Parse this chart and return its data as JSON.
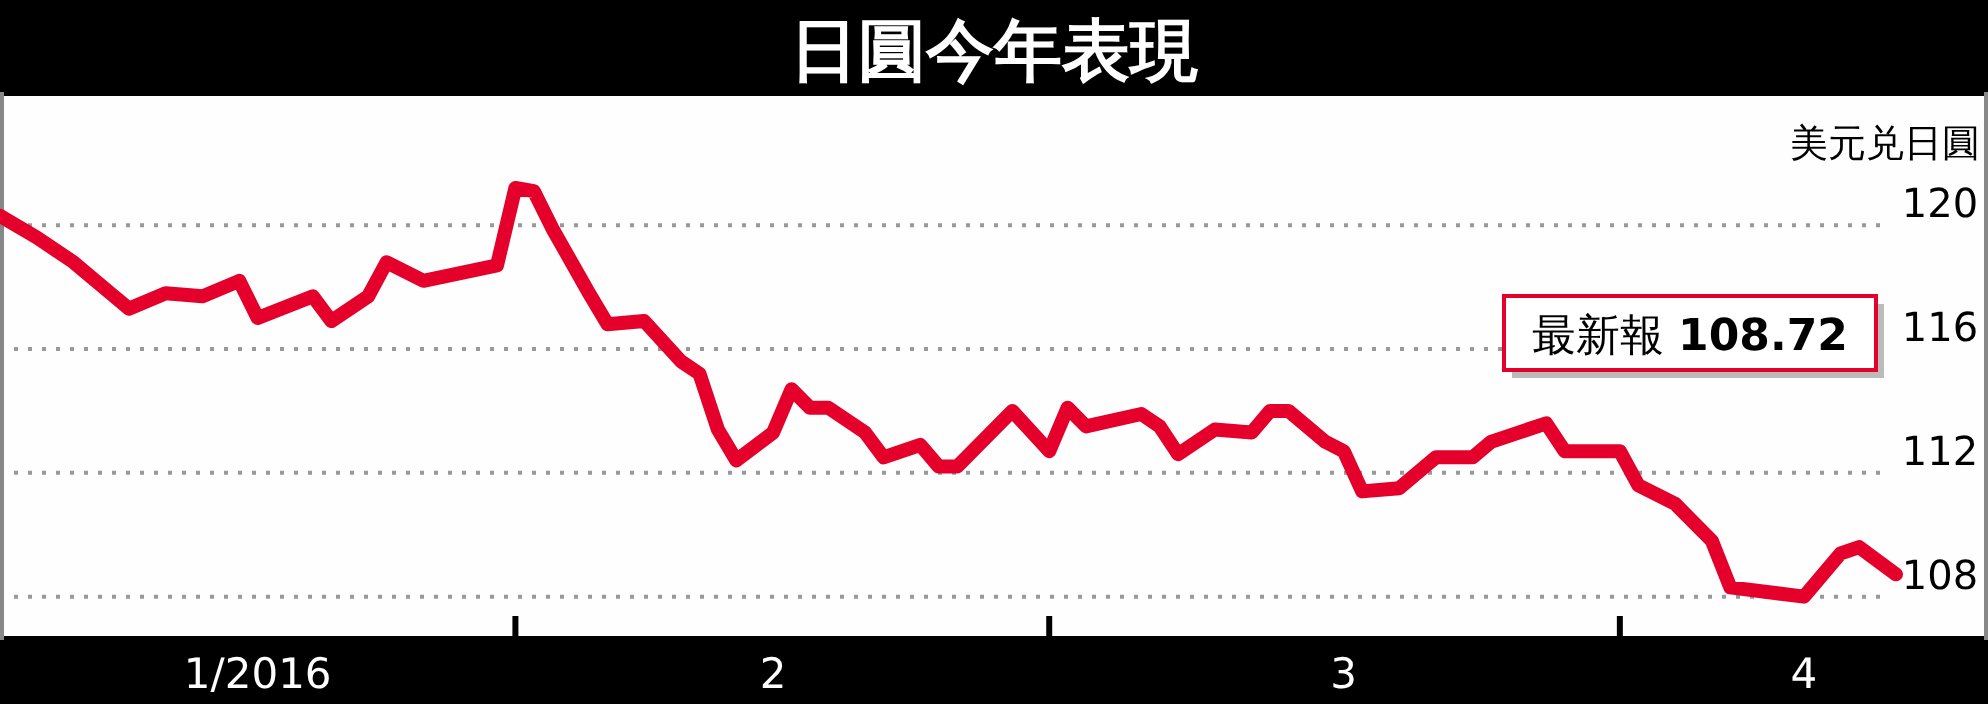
{
  "chart_data": {
    "type": "line",
    "title": "日圓今年表現",
    "ylabel": "美元兑日圓",
    "annotations": [
      "最新報 **108.72**"
    ],
    "x": [
      "2016-01-04",
      "2016-01-06",
      "2016-01-08",
      "2016-01-10",
      "2016-01-11",
      "2016-01-13",
      "2016-01-15",
      "2016-01-17",
      "2016-01-18",
      "2016-01-21",
      "2016-01-22",
      "2016-01-24",
      "2016-01-25",
      "2016-01-27",
      "2016-01-31",
      "2016-02-01",
      "2016-02-02",
      "2016-02-03",
      "2016-02-05",
      "2016-02-06",
      "2016-02-08",
      "2016-02-10",
      "2016-02-11",
      "2016-02-12",
      "2016-02-13",
      "2016-02-15",
      "2016-02-16",
      "2016-02-17",
      "2016-02-18",
      "2016-02-20",
      "2016-02-21",
      "2016-02-23",
      "2016-02-24",
      "2016-02-25",
      "2016-02-28",
      "2016-03-01",
      "2016-03-02",
      "2016-03-03",
      "2016-03-06",
      "2016-03-07",
      "2016-03-08",
      "2016-03-10",
      "2016-03-12",
      "2016-03-13",
      "2016-03-14",
      "2016-03-16",
      "2016-03-17",
      "2016-03-18",
      "2016-03-20",
      "2016-03-22",
      "2016-03-24",
      "2016-03-25",
      "2016-03-28",
      "2016-03-29",
      "2016-04-01",
      "2016-04-02",
      "2016-04-04",
      "2016-04-06",
      "2016-04-07",
      "2016-04-11",
      "2016-04-13",
      "2016-04-14",
      "2016-04-16"
    ],
    "series": [
      {
        "color": "#e4002b",
        "values": [
          120.3,
          119.6,
          118.8,
          117.8,
          117.3,
          117.8,
          117.7,
          118.2,
          117.0,
          117.7,
          116.9,
          117.7,
          118.8,
          118.2,
          118.7,
          121.2,
          121.1,
          119.9,
          117.8,
          116.8,
          116.9,
          115.6,
          115.2,
          113.4,
          112.4,
          113.3,
          114.7,
          114.1,
          114.1,
          113.3,
          112.5,
          112.9,
          112.2,
          112.2,
          114.0,
          112.7,
          114.1,
          113.5,
          113.9,
          113.5,
          112.6,
          113.4,
          113.3,
          114.0,
          114.0,
          113.0,
          112.7,
          111.4,
          111.5,
          112.5,
          112.5,
          113.0,
          113.6,
          112.7,
          112.7,
          111.6,
          111.0,
          109.8,
          108.3,
          108.0,
          109.4,
          109.6,
          108.72
        ]
      }
    ],
    "xlim": [
      "2016-01-04",
      "2016-04-21"
    ],
    "xticks": [
      {
        "value": "2016-01-18",
        "label": "1/2016"
      },
      {
        "value": "2016-02-01",
        "label": null
      },
      {
        "value": "2016-02-15",
        "label": "2"
      },
      {
        "value": "2016-03-01",
        "label": null
      },
      {
        "value": "2016-03-17",
        "label": "3"
      },
      {
        "value": "2016-04-01",
        "label": null
      },
      {
        "value": "2016-04-11",
        "label": "4"
      }
    ],
    "ylim": [
      106.6,
      124.3
    ],
    "yticks": [
      108,
      112,
      116,
      120
    ],
    "grid": "y",
    "line_style": "solid",
    "marker": "none"
  }
}
